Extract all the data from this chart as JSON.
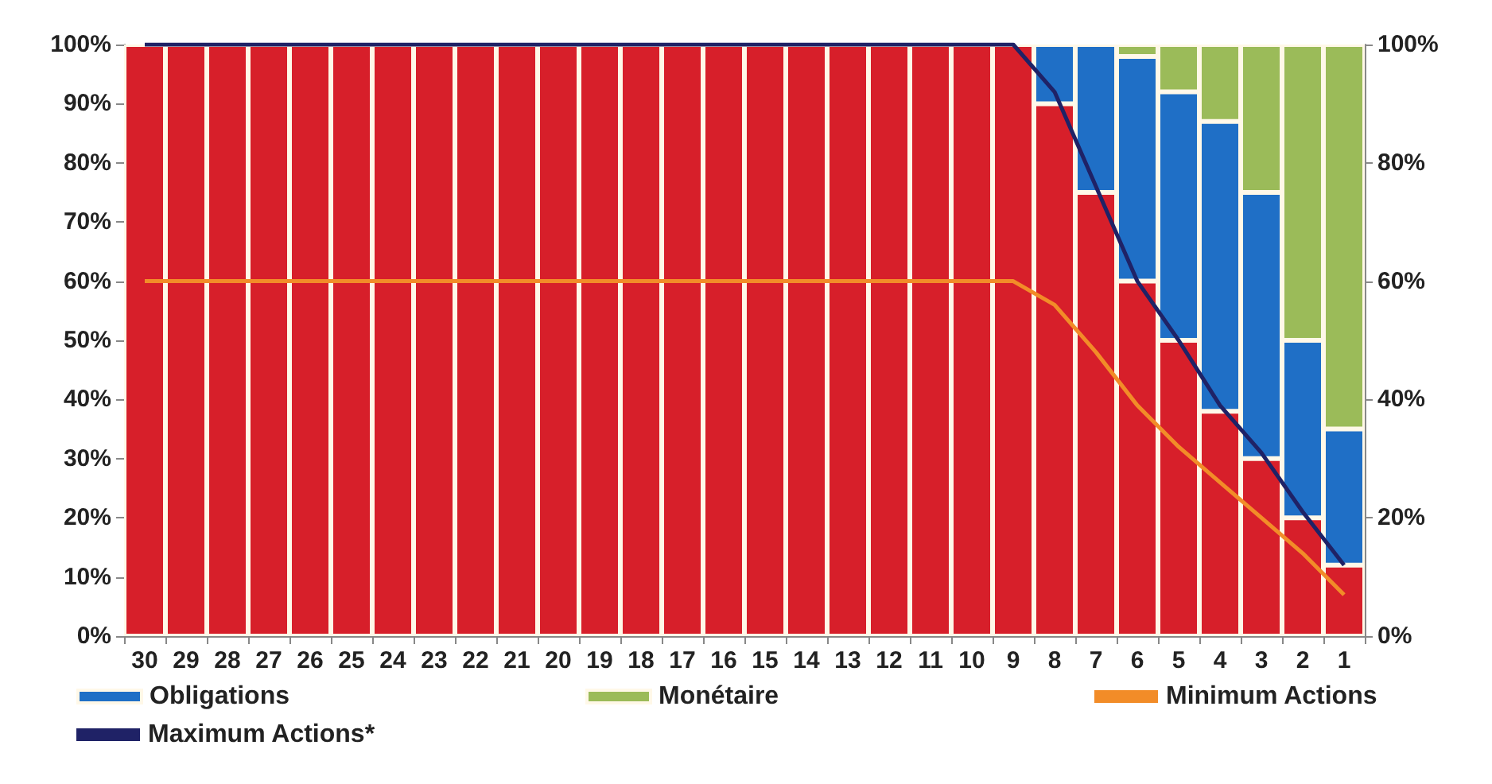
{
  "chart_data": {
    "type": "bar",
    "stacked": true,
    "categories": [
      "30",
      "29",
      "28",
      "27",
      "26",
      "25",
      "24",
      "23",
      "22",
      "21",
      "20",
      "19",
      "18",
      "17",
      "16",
      "15",
      "14",
      "13",
      "12",
      "11",
      "10",
      "9",
      "8",
      "7",
      "6",
      "5",
      "4",
      "3",
      "2",
      "1"
    ],
    "series": [
      {
        "color": "#d71f2a",
        "values": [
          100,
          100,
          100,
          100,
          100,
          100,
          100,
          100,
          100,
          100,
          100,
          100,
          100,
          100,
          100,
          100,
          100,
          100,
          100,
          100,
          100,
          100,
          90,
          75,
          60,
          50,
          38,
          30,
          20,
          12
        ]
      },
      {
        "name": "Obligations",
        "color": "#1f6fc6",
        "values": [
          null,
          null,
          null,
          null,
          null,
          null,
          null,
          null,
          null,
          null,
          null,
          null,
          null,
          null,
          null,
          null,
          null,
          null,
          null,
          null,
          null,
          null,
          10,
          25,
          38,
          42,
          49,
          45,
          30,
          23
        ]
      },
      {
        "name": "Monétaire",
        "color": "#9bbb59",
        "values": [
          null,
          null,
          null,
          null,
          null,
          null,
          null,
          null,
          null,
          null,
          null,
          null,
          null,
          null,
          null,
          null,
          null,
          null,
          null,
          null,
          null,
          null,
          null,
          null,
          2,
          8,
          13,
          25,
          50,
          65
        ]
      },
      {
        "name": "Minimum Actions",
        "type": "line",
        "color": "#f28c28",
        "values": [
          60,
          60,
          60,
          60,
          60,
          60,
          60,
          60,
          60,
          60,
          60,
          60,
          60,
          60,
          60,
          60,
          60,
          60,
          60,
          60,
          60,
          60,
          56,
          48,
          39,
          32,
          26,
          20,
          14,
          7
        ]
      },
      {
        "name": "Maximum Actions*",
        "type": "line",
        "color": "#1f2266",
        "values": [
          100,
          100,
          100,
          100,
          100,
          100,
          100,
          100,
          100,
          100,
          100,
          100,
          100,
          100,
          100,
          100,
          100,
          100,
          100,
          100,
          100,
          100,
          92,
          76,
          60,
          50,
          39,
          31,
          21,
          12
        ]
      }
    ],
    "ylim": [
      0,
      100
    ],
    "yticks": [
      {
        "value": 0,
        "label": "0%"
      },
      {
        "value": 10,
        "label": "10%"
      },
      {
        "value": 20,
        "label": "20%"
      },
      {
        "value": 30,
        "label": "30%"
      },
      {
        "value": 40,
        "label": "40%"
      },
      {
        "value": 50,
        "label": "50%"
      },
      {
        "value": 60,
        "label": "60%"
      },
      {
        "value": 70,
        "label": "70%"
      },
      {
        "value": 80,
        "label": "80%"
      },
      {
        "value": 90,
        "label": "90%"
      },
      {
        "value": 100,
        "label": "100%"
      }
    ],
    "y2lim": [
      0,
      100
    ],
    "y2ticks": [
      {
        "value": 0,
        "label": "0%"
      },
      {
        "value": 20,
        "label": "20%"
      },
      {
        "value": 40,
        "label": "40%"
      },
      {
        "value": 60,
        "label": "60%"
      },
      {
        "value": 80,
        "label": "80%"
      },
      {
        "value": 100,
        "label": "100%"
      }
    ],
    "legend": "bottom",
    "grid": false,
    "marker": "none",
    "line_style": "solid"
  }
}
